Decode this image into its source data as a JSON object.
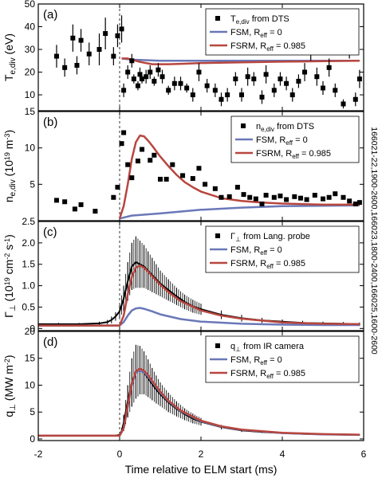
{
  "figure": {
    "xlabel": "Time relative to ELM start (ms)",
    "shot_label": "166021-22,1900-2600,166023,1800-2400,166025,1600-2600",
    "x_tick_labels": [
      "-2",
      "0",
      "2",
      "4",
      "6"
    ],
    "colors": {
      "data": "#000000",
      "fsm": "#6a78b8",
      "fsrm": "#b8463f",
      "elm_marker": "#333333"
    }
  },
  "chart_data": [
    {
      "type": "scatter",
      "panel_label": "(a)",
      "ylabel_main": "T",
      "ylabel_sub": "e,div",
      "ylabel_unit": " (eV)",
      "xlim": [
        -2,
        6
      ],
      "ylim": [
        3,
        50
      ],
      "yticks": [
        10,
        20,
        30,
        40,
        50
      ],
      "legend": [
        {
          "kind": "marker",
          "main": "T",
          "sub": "e,div",
          "rest": " from DTS"
        },
        {
          "kind": "line",
          "series": "fsm",
          "main": "FSM, R",
          "sub": "eff",
          "rest": " = 0"
        },
        {
          "kind": "line",
          "series": "fsrm",
          "main": "FSRM, R",
          "sub": "eff",
          "rest": " = 0.985"
        }
      ],
      "points": [
        {
          "x": -1.55,
          "y": 27,
          "err": 5
        },
        {
          "x": -1.35,
          "y": 22,
          "err": 4
        },
        {
          "x": -1.15,
          "y": 35,
          "err": 6
        },
        {
          "x": -1.05,
          "y": 23,
          "err": 4
        },
        {
          "x": -0.95,
          "y": 34,
          "err": 5
        },
        {
          "x": -0.75,
          "y": 28,
          "err": 5
        },
        {
          "x": -0.5,
          "y": 30,
          "err": 7
        },
        {
          "x": -0.35,
          "y": 37,
          "err": 7
        },
        {
          "x": -0.15,
          "y": 27,
          "err": 4
        },
        {
          "x": -0.05,
          "y": 36,
          "err": 5
        },
        {
          "x": 0.05,
          "y": 39,
          "err": 6
        },
        {
          "x": 0.1,
          "y": 12,
          "err": 3
        },
        {
          "x": 0.2,
          "y": 20,
          "err": 3
        },
        {
          "x": 0.3,
          "y": 25,
          "err": 3
        },
        {
          "x": 0.35,
          "y": 17,
          "err": 2
        },
        {
          "x": 0.45,
          "y": 14,
          "err": 2
        },
        {
          "x": 0.5,
          "y": 19,
          "err": 3
        },
        {
          "x": 0.55,
          "y": 17,
          "err": 2
        },
        {
          "x": 0.65,
          "y": 18,
          "err": 3
        },
        {
          "x": 0.75,
          "y": 20,
          "err": 3
        },
        {
          "x": 0.85,
          "y": 16,
          "err": 2
        },
        {
          "x": 0.95,
          "y": 21,
          "err": 3
        },
        {
          "x": 1.05,
          "y": 18,
          "err": 3
        },
        {
          "x": 1.2,
          "y": 12,
          "err": 2
        },
        {
          "x": 1.35,
          "y": 15,
          "err": 3
        },
        {
          "x": 1.5,
          "y": 15,
          "err": 3
        },
        {
          "x": 1.65,
          "y": 13,
          "err": 2
        },
        {
          "x": 1.8,
          "y": 10,
          "err": 3
        },
        {
          "x": 1.95,
          "y": 20,
          "err": 4
        },
        {
          "x": 2.15,
          "y": 14,
          "err": 3
        },
        {
          "x": 2.35,
          "y": 12,
          "err": 3
        },
        {
          "x": 2.5,
          "y": 8,
          "err": 3
        },
        {
          "x": 2.65,
          "y": 10,
          "err": 3
        },
        {
          "x": 2.85,
          "y": 17,
          "err": 3
        },
        {
          "x": 3.0,
          "y": 10,
          "err": 3
        },
        {
          "x": 3.15,
          "y": 18,
          "err": 4
        },
        {
          "x": 3.3,
          "y": 17,
          "err": 3
        },
        {
          "x": 3.5,
          "y": 9,
          "err": 3
        },
        {
          "x": 3.6,
          "y": 19,
          "err": 4
        },
        {
          "x": 3.8,
          "y": 12,
          "err": 3
        },
        {
          "x": 3.95,
          "y": 17,
          "err": 3
        },
        {
          "x": 4.1,
          "y": 15,
          "err": 3
        },
        {
          "x": 4.25,
          "y": 10,
          "err": 3
        },
        {
          "x": 4.4,
          "y": 16,
          "err": 3
        },
        {
          "x": 4.55,
          "y": 20,
          "err": 4
        },
        {
          "x": 4.7,
          "y": 34,
          "err": 9
        },
        {
          "x": 4.85,
          "y": 18,
          "err": 4
        },
        {
          "x": 5.0,
          "y": 13,
          "err": 3
        },
        {
          "x": 5.15,
          "y": 22,
          "err": 4
        },
        {
          "x": 5.3,
          "y": 12,
          "err": 3
        },
        {
          "x": 5.5,
          "y": 6,
          "err": 2
        },
        {
          "x": 5.65,
          "y": 34,
          "err": 8
        },
        {
          "x": 5.8,
          "y": 8,
          "err": 3
        },
        {
          "x": 5.9,
          "y": 17,
          "err": 4
        }
      ],
      "series": [
        {
          "name": "FSM, R_eff = 0",
          "key": "fsm",
          "x": [
            0.05,
            0.3,
            1,
            2,
            3,
            4,
            5,
            5.9
          ],
          "y": [
            26,
            25.5,
            25,
            25,
            25,
            25,
            25,
            25
          ]
        },
        {
          "name": "FSRM, R_eff = 0.985",
          "key": "fsrm",
          "x": [
            0.05,
            0.2,
            0.5,
            0.8,
            1.2,
            1.6,
            2,
            3,
            4,
            5,
            5.9
          ],
          "y": [
            26,
            26,
            24.5,
            23.5,
            23.5,
            23.7,
            24,
            24.3,
            24.6,
            24.8,
            25
          ]
        }
      ]
    },
    {
      "type": "scatter",
      "panel_label": "(b)",
      "ylabel_main": "n",
      "ylabel_sub": "e,div",
      "ylabel_unit": " (10",
      "ylabel_unit2": "19",
      "ylabel_unit3": " m",
      "ylabel_unit4": "-3",
      "ylabel_unit5": ")",
      "xlim": [
        -2,
        6
      ],
      "ylim": [
        0,
        15
      ],
      "yticks": [
        5,
        10,
        15
      ],
      "legend": [
        {
          "kind": "marker",
          "main": "n",
          "sub": "e,div",
          "rest": " from DTS"
        },
        {
          "kind": "line",
          "series": "fsm",
          "main": "FSM, R",
          "sub": "eff",
          "rest": " = 0"
        },
        {
          "kind": "line",
          "series": "fsrm",
          "main": "FSRM, R",
          "sub": "eff",
          "rest": " = 0.985"
        }
      ],
      "points": [
        {
          "x": -1.55,
          "y": 2.8
        },
        {
          "x": -1.35,
          "y": 2.6
        },
        {
          "x": -1.1,
          "y": 1.6
        },
        {
          "x": -0.95,
          "y": 2.2
        },
        {
          "x": -0.6,
          "y": 1.3
        },
        {
          "x": -0.15,
          "y": 3.2
        },
        {
          "x": -0.05,
          "y": 4.6
        },
        {
          "x": 0.05,
          "y": 10.6
        },
        {
          "x": 0.1,
          "y": 12.1
        },
        {
          "x": 0.2,
          "y": 7.7
        },
        {
          "x": 0.3,
          "y": 5.9
        },
        {
          "x": 0.45,
          "y": 8.2
        },
        {
          "x": 0.55,
          "y": 9.8
        },
        {
          "x": 0.75,
          "y": 8.3
        },
        {
          "x": 0.85,
          "y": 9.0
        },
        {
          "x": 1.0,
          "y": 5.7
        },
        {
          "x": 1.15,
          "y": 5.7
        },
        {
          "x": 1.3,
          "y": 7.7
        },
        {
          "x": 1.55,
          "y": 6.2
        },
        {
          "x": 1.8,
          "y": 5.8
        },
        {
          "x": 1.95,
          "y": 7.2
        },
        {
          "x": 2.1,
          "y": 5.0
        },
        {
          "x": 2.35,
          "y": 4.4
        },
        {
          "x": 2.5,
          "y": 3.2
        },
        {
          "x": 2.7,
          "y": 3.3
        },
        {
          "x": 2.9,
          "y": 4.6
        },
        {
          "x": 3.05,
          "y": 3.6
        },
        {
          "x": 3.2,
          "y": 3.2
        },
        {
          "x": 3.35,
          "y": 3.0
        },
        {
          "x": 3.5,
          "y": 2.3
        },
        {
          "x": 3.6,
          "y": 3.5
        },
        {
          "x": 3.8,
          "y": 3.2
        },
        {
          "x": 3.95,
          "y": 3.4
        },
        {
          "x": 4.1,
          "y": 2.9
        },
        {
          "x": 4.3,
          "y": 3.3
        },
        {
          "x": 4.45,
          "y": 3.1
        },
        {
          "x": 4.6,
          "y": 2.9
        },
        {
          "x": 4.8,
          "y": 3.5
        },
        {
          "x": 5.0,
          "y": 3.0
        },
        {
          "x": 5.15,
          "y": 3.2
        },
        {
          "x": 5.3,
          "y": 3.7
        },
        {
          "x": 5.5,
          "y": 3.2
        },
        {
          "x": 5.65,
          "y": 2.7
        },
        {
          "x": 5.8,
          "y": 2.3
        },
        {
          "x": 5.9,
          "y": 2.5
        }
      ],
      "series": [
        {
          "name": "FSM, R_eff = 0",
          "key": "fsm",
          "x": [
            0,
            0.3,
            1,
            2,
            3,
            4,
            5,
            5.9
          ],
          "y": [
            0.3,
            0.7,
            1.0,
            1.5,
            1.8,
            2.0,
            2.05,
            2.1
          ]
        },
        {
          "name": "FSRM, R_eff = 0.985",
          "key": "fsrm",
          "x": [
            0,
            0.1,
            0.2,
            0.3,
            0.4,
            0.5,
            0.6,
            0.7,
            0.8,
            1.0,
            1.2,
            1.4,
            1.6,
            1.8,
            2.0,
            2.5,
            3.0,
            3.5,
            4.0,
            5.0,
            5.9
          ],
          "y": [
            0.3,
            2,
            5,
            8.5,
            10.8,
            11.7,
            11.6,
            11.0,
            10.3,
            8.8,
            7.5,
            6.3,
            5.3,
            4.6,
            4.0,
            3.1,
            2.7,
            2.5,
            2.35,
            2.2,
            2.2
          ]
        }
      ]
    },
    {
      "type": "line",
      "panel_label": "(c)",
      "ylabel_main": "Γ",
      "ylabel_sub": "⊥",
      "ylabel_unit": " (10",
      "ylabel_unit2": "19",
      "ylabel_unit3": " cm",
      "ylabel_unit4": "-2",
      "ylabel_unit5": " s",
      "ylabel_unit6": "-1",
      "ylabel_unit7": ")",
      "xlim": [
        -2,
        6
      ],
      "ylim": [
        -0.05,
        2.5
      ],
      "yticks": [
        0,
        0.5,
        1.0,
        1.5,
        2.0,
        2.5
      ],
      "ytick_labels": [
        "0",
        "0.5",
        "1.0",
        "1.5",
        "2.0",
        "2.5"
      ],
      "legend": [
        {
          "kind": "marker",
          "main": "Γ",
          "sub": "⊥",
          "rest": " from Lang. probe"
        },
        {
          "kind": "line",
          "series": "fsm",
          "main": "FSM, R",
          "sub": "eff",
          "rest": " = 0"
        },
        {
          "kind": "line",
          "series": "fsrm",
          "main": "FSRM, R",
          "sub": "eff",
          "rest": " = 0.985"
        }
      ],
      "measured": {
        "x": [
          -2,
          -1.5,
          -1,
          -0.5,
          -0.3,
          -0.2,
          -0.1,
          0,
          0.1,
          0.2,
          0.3,
          0.4,
          0.5,
          0.6,
          0.7,
          0.8,
          0.9,
          1.0,
          1.2,
          1.4,
          1.6,
          1.8,
          2.0,
          2.5,
          3.0,
          3.5,
          4.0,
          4.5,
          5.0,
          5.5,
          5.9
        ],
        "y": [
          0.1,
          0.1,
          0.1,
          0.12,
          0.15,
          0.2,
          0.28,
          0.4,
          0.7,
          1.1,
          1.45,
          1.55,
          1.5,
          1.45,
          1.35,
          1.25,
          1.15,
          1.05,
          0.9,
          0.75,
          0.62,
          0.52,
          0.45,
          0.32,
          0.24,
          0.19,
          0.16,
          0.13,
          0.12,
          0.11,
          0.1
        ],
        "err": [
          0.03,
          0.03,
          0.03,
          0.04,
          0.05,
          0.08,
          0.1,
          0.15,
          0.3,
          0.45,
          0.55,
          0.6,
          0.55,
          0.5,
          0.45,
          0.4,
          0.35,
          0.3,
          0.25,
          0.2,
          0.17,
          0.15,
          0.13,
          0.1,
          0.08,
          0.06,
          0.05,
          0.05,
          0.04,
          0.04,
          0.04
        ]
      },
      "series": [
        {
          "name": "FSM, R_eff = 0",
          "key": "fsm",
          "x": [
            -2,
            0,
            0.1,
            0.2,
            0.3,
            0.4,
            0.5,
            0.6,
            0.8,
            1.0,
            1.5,
            2.0,
            3.0,
            4.0,
            5.0,
            5.9
          ],
          "y": [
            0.07,
            0.07,
            0.15,
            0.3,
            0.42,
            0.47,
            0.48,
            0.46,
            0.4,
            0.33,
            0.22,
            0.16,
            0.11,
            0.09,
            0.08,
            0.08
          ]
        },
        {
          "name": "FSRM, R_eff = 0.985",
          "key": "fsrm",
          "x": [
            -2,
            0,
            0.1,
            0.2,
            0.3,
            0.4,
            0.5,
            0.6,
            0.7,
            0.8,
            1.0,
            1.2,
            1.5,
            2.0,
            2.5,
            3.0,
            4.0,
            5.0,
            5.9
          ],
          "y": [
            0.07,
            0.07,
            0.3,
            0.8,
            1.2,
            1.42,
            1.47,
            1.42,
            1.33,
            1.22,
            1.02,
            0.85,
            0.64,
            0.42,
            0.3,
            0.23,
            0.14,
            0.11,
            0.1
          ]
        }
      ]
    },
    {
      "type": "line",
      "panel_label": "(d)",
      "ylabel_main": "q",
      "ylabel_sub": "⊥",
      "ylabel_unit": " (MW m",
      "ylabel_unit2": "-2",
      "ylabel_unit3": ")",
      "xlim": [
        -2,
        6
      ],
      "ylim": [
        -0.3,
        20
      ],
      "yticks": [
        0,
        5,
        10,
        15,
        20
      ],
      "legend": [
        {
          "kind": "marker",
          "main": "q",
          "sub": "⊥",
          "rest": " from IR camera"
        },
        {
          "kind": "line",
          "series": "fsm",
          "main": "FSM, R",
          "sub": "eff",
          "rest": " = 0"
        },
        {
          "kind": "line",
          "series": "fsrm",
          "main": "FSRM, R",
          "sub": "eff",
          "rest": " = 0.985"
        }
      ],
      "measured": {
        "x": [
          -2,
          -1.5,
          -1,
          -0.5,
          -0.1,
          0,
          0.05,
          0.1,
          0.2,
          0.3,
          0.4,
          0.5,
          0.6,
          0.7,
          0.8,
          0.9,
          1.0,
          1.2,
          1.4,
          1.6,
          1.8,
          2.0,
          2.5,
          3.0,
          3.5,
          4.0,
          4.5,
          5.0,
          5.5,
          5.9
        ],
        "y": [
          0.6,
          0.6,
          0.6,
          0.6,
          0.6,
          0.8,
          1.5,
          3,
          7,
          10.5,
          12.5,
          12.8,
          12.3,
          11.3,
          10.2,
          9.2,
          8.3,
          6.8,
          5.6,
          4.6,
          3.8,
          3.2,
          2.2,
          1.6,
          1.3,
          1.1,
          0.95,
          0.85,
          0.8,
          0.75
        ],
        "err": [
          0.1,
          0.1,
          0.1,
          0.1,
          0.1,
          0.2,
          0.5,
          1.5,
          3,
          4.5,
          5,
          4.5,
          4,
          3.5,
          3,
          2.6,
          2.2,
          1.8,
          1.4,
          1.1,
          0.9,
          0.7,
          0.4,
          0.3,
          0.2,
          0.15,
          0.12,
          0.1,
          0.1,
          0.1
        ]
      },
      "series": [
        {
          "name": "FSM, R_eff = 0",
          "key": "fsm",
          "x": [
            -2,
            0,
            0.1,
            0.2,
            0.3,
            0.4,
            0.5,
            0.6,
            0.7,
            0.8,
            1.0,
            1.2,
            1.5,
            2.0,
            2.5,
            3.0,
            4.0,
            5.0,
            5.9
          ],
          "y": [
            0.6,
            0.6,
            2,
            6,
            10,
            12.3,
            12.8,
            12.4,
            11.6,
            10.6,
            8.6,
            7.0,
            5.2,
            3.3,
            2.3,
            1.7,
            1.1,
            0.85,
            0.75
          ]
        },
        {
          "name": "FSRM, R_eff = 0.985",
          "key": "fsrm",
          "x": [
            -2,
            0,
            0.1,
            0.2,
            0.3,
            0.4,
            0.5,
            0.6,
            0.7,
            0.8,
            1.0,
            1.2,
            1.5,
            2.0,
            2.5,
            3.0,
            4.0,
            5.0,
            5.9
          ],
          "y": [
            0.6,
            0.6,
            2,
            6.2,
            10.3,
            12.6,
            13.1,
            12.7,
            11.9,
            10.8,
            8.8,
            7.1,
            5.3,
            3.4,
            2.35,
            1.75,
            1.15,
            0.9,
            0.8
          ]
        }
      ]
    }
  ]
}
